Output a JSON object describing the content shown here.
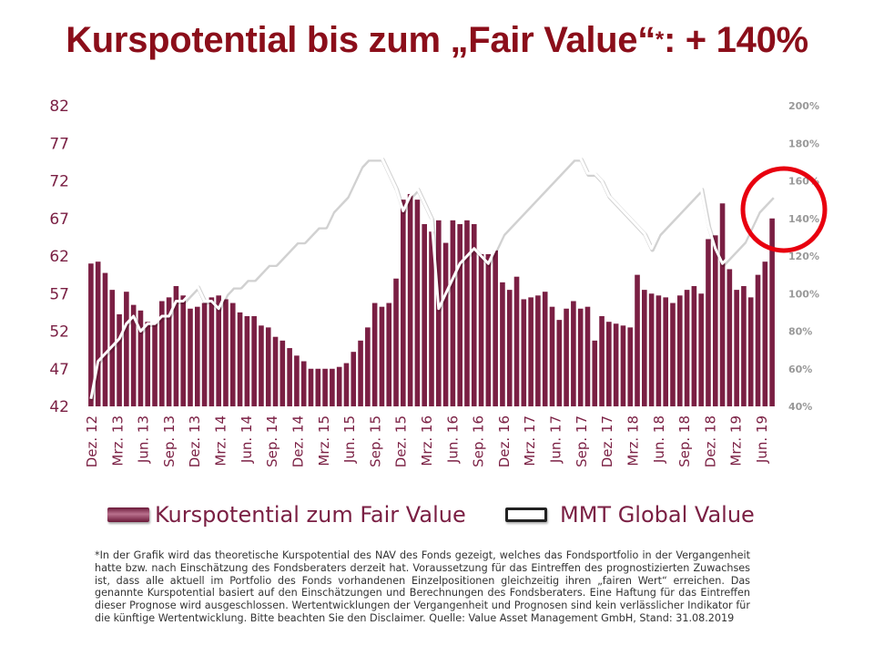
{
  "title": {
    "main": "Kurspotential bis zum „Fair Value“",
    "star": "*",
    "suffix": ": + 140%"
  },
  "legend": {
    "bars_label": "Kurspotential zum Fair Value",
    "line_label": "MMT Global Value"
  },
  "footnote": "*In der Grafik wird das theoretische Kurspotential des NAV des Fonds gezeigt, welches das Fondsportfolio in der Vergangenheit hatte bzw. nach Einschätzung des Fondsberaters derzeit hat. Voraussetzung für das Eintreffen des prognostizierten Zuwachses ist, dass alle aktuell im Portfolio des Fonds vorhandenen Einzelpositionen gleichzeitig ihren „fairen Wert“ erreichen. Das genannte Kurspotential basiert auf den Einschätzungen und Berechnungen des Fondsberaters. Eine Haftung für das Eintreffen dieser Prognose wird ausgeschlossen. Wertentwicklungen der Vergangenheit und Prognosen sind kein verlässlicher Indikator für die künftige Wertentwicklung. Bitte beachten Sie den Disclaimer. Quelle: Value Asset Management GmbH, Stand: 31.08.2019",
  "colors": {
    "title": "#8b0e1a",
    "bar": "#7a1f43",
    "line": "#ffffff",
    "highlight_circle": "#e8000f"
  },
  "chart_data": {
    "type": "bar",
    "x_tick_labels": [
      "Dez. 12",
      "Mrz. 13",
      "Jun. 13",
      "Sep. 13",
      "Dez. 13",
      "Mrz. 14",
      "Jun. 14",
      "Sep. 14",
      "Dez. 14",
      "Mrz. 15",
      "Jun. 15",
      "Sep. 15",
      "Dez. 15",
      "Mrz. 16",
      "Jun. 16",
      "Sep. 16",
      "Dez. 16",
      "Mrz. 17",
      "Jun. 17",
      "Sep. 17",
      "Dez. 17",
      "Mrz. 18",
      "Jun. 18",
      "Sep. 18",
      "Dez. 18",
      "Mrz. 19",
      "Jun. 19"
    ],
    "y_left_ticks": [
      42,
      47,
      52,
      57,
      62,
      67,
      72,
      77,
      82
    ],
    "y_left_range": [
      42,
      82
    ],
    "y_right_ticks": [
      "40%",
      "60%",
      "80%",
      "100%",
      "120%",
      "140%",
      "160%",
      "180%",
      "200%"
    ],
    "y_right_range": [
      40,
      200
    ],
    "series": [
      {
        "name": "Kurspotential zum Fair Value",
        "axis": "right",
        "unit": "%",
        "values": [
          116,
          117,
          111,
          102,
          89,
          101,
          94,
          91,
          85,
          84,
          96,
          98,
          104,
          99,
          92,
          93,
          95,
          98,
          99,
          97,
          95,
          90,
          88,
          88,
          83,
          82,
          77,
          75,
          71,
          67,
          64,
          60,
          60,
          60,
          60,
          61,
          63,
          69,
          75,
          82,
          95,
          93,
          95,
          108,
          150,
          153,
          150,
          137,
          133,
          139,
          127,
          139,
          137,
          139,
          137,
          121,
          121,
          123,
          106,
          102,
          109,
          97,
          98,
          99,
          101,
          93,
          86,
          92,
          96,
          92,
          93,
          75,
          88,
          85,
          84,
          83,
          82,
          110,
          102,
          100,
          99,
          98,
          95,
          99,
          102,
          104,
          100,
          129,
          131,
          148,
          113,
          102,
          104,
          98,
          110,
          117,
          140
        ],
        "bar_spacing_note": "monthly, Dez. 2012 – Aug. 2019"
      },
      {
        "name": "MMT Global Value",
        "axis": "left",
        "values": [
          43,
          48,
          49,
          50,
          51,
          53,
          54,
          52,
          53,
          53,
          54,
          54,
          56,
          56,
          57,
          58,
          56,
          56,
          55,
          57,
          58,
          58,
          59,
          59,
          60,
          61,
          61,
          62,
          63,
          64,
          64,
          65,
          66,
          66,
          68,
          69,
          70,
          72,
          74,
          75,
          75,
          75,
          73,
          71,
          68,
          70,
          71,
          69,
          67,
          55,
          57,
          59,
          61,
          62,
          63,
          62,
          61,
          63,
          65,
          66,
          67,
          68,
          69,
          70,
          71,
          72,
          73,
          74,
          75,
          75,
          73,
          73,
          72,
          70,
          69,
          68,
          67,
          66,
          65,
          63,
          65,
          66,
          67,
          68,
          69,
          70,
          71,
          66,
          63,
          61,
          62,
          63,
          64,
          66,
          68,
          69,
          70
        ]
      }
    ],
    "highlight": "circle around latest bars (Jun. 19)"
  }
}
